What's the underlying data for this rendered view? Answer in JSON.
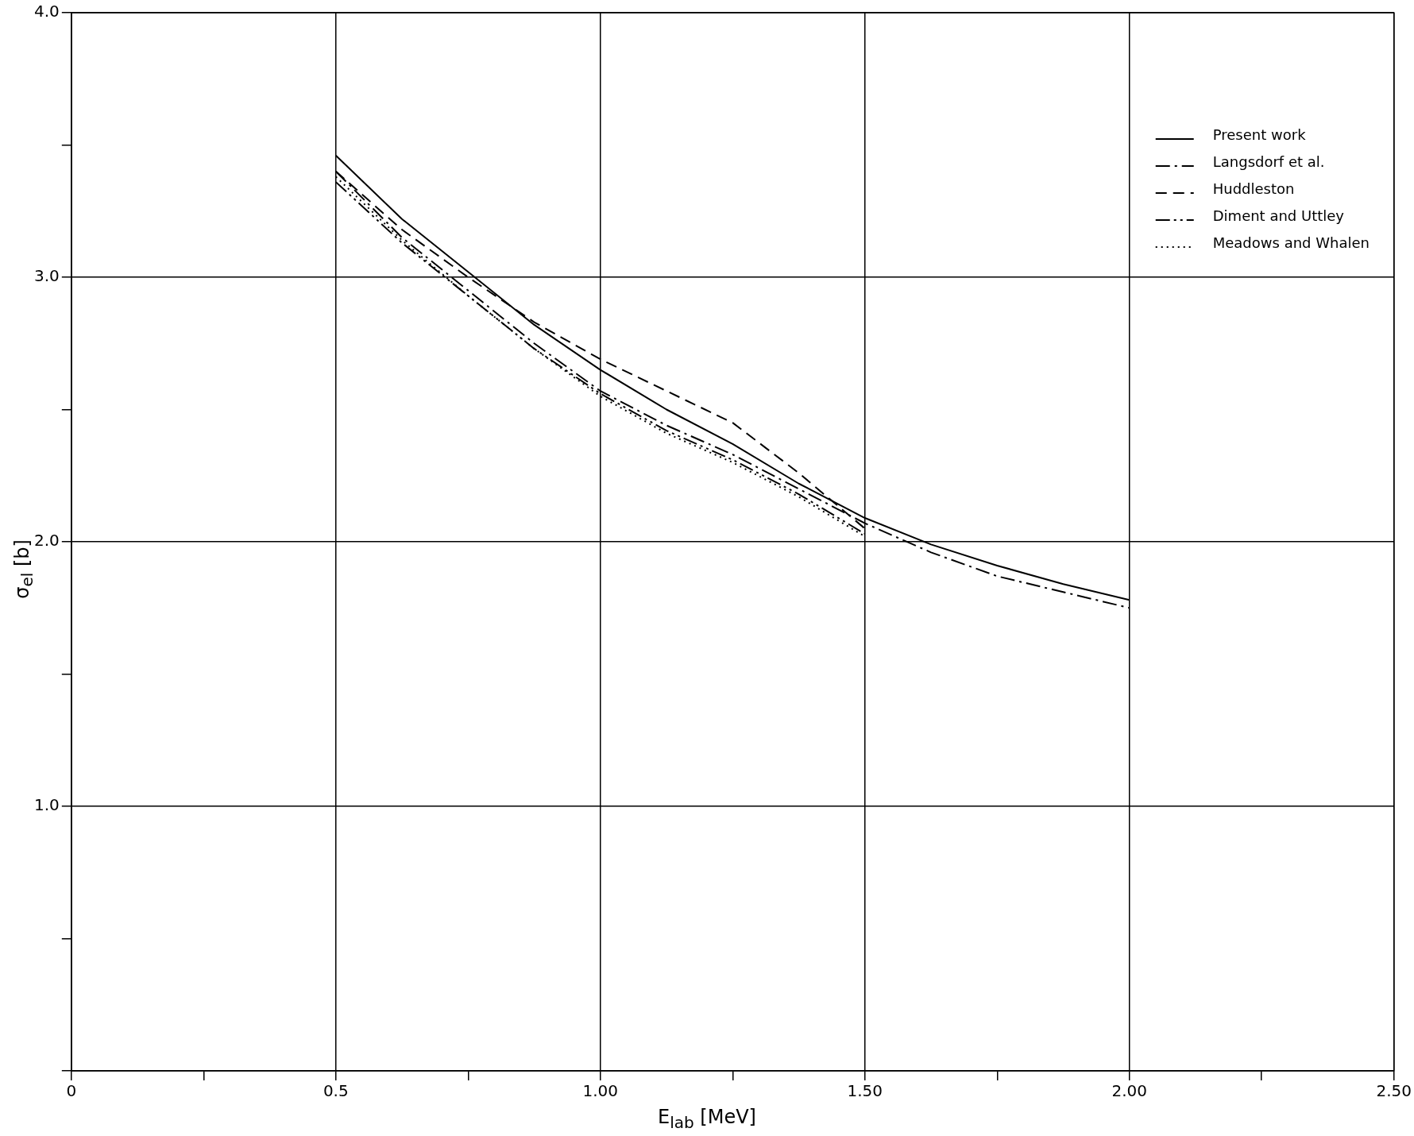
{
  "chart_data": {
    "type": "line",
    "xlabel": "E$_{lab}$ [MeV]",
    "ylabel": "σ$_{el}$ [b]",
    "xlim": [
      0,
      2.5
    ],
    "ylim": [
      0,
      4.0
    ],
    "xticks": [
      0,
      {
        "value": 0.25,
        "label": null
      },
      0.5,
      {
        "value": 0.75,
        "label": null
      },
      {
        "value": 1.0,
        "label": "1.00"
      },
      {
        "value": 1.25,
        "label": null
      },
      {
        "value": 1.5,
        "label": "1.50"
      },
      {
        "value": 1.75,
        "label": null
      },
      {
        "value": 2.0,
        "label": "2.00"
      },
      {
        "value": 2.25,
        "label": null
      },
      {
        "value": 2.5,
        "label": "2.50"
      }
    ],
    "yticks": [
      {
        "value": 0,
        "label": null
      },
      {
        "value": 0.5,
        "label": null
      },
      {
        "value": 1.0,
        "label": "1.0"
      },
      {
        "value": 1.5,
        "label": null
      },
      {
        "value": 2.0,
        "label": "2.0"
      },
      {
        "value": 2.5,
        "label": null
      },
      {
        "value": 3.0,
        "label": "3.0"
      },
      {
        "value": 3.5,
        "label": null
      },
      {
        "value": 4.0,
        "label": "4.0"
      }
    ],
    "grid": true,
    "legend": "top right",
    "marker": "none",
    "x": [
      0.5,
      0.625,
      0.75,
      0.875,
      1.0,
      1.125,
      1.25,
      1.375,
      1.5,
      1.625,
      1.75,
      1.875,
      2.0
    ],
    "series": [
      {
        "name": "Present work",
        "color": "#000000",
        "line_style": "solid",
        "values": [
          3.46,
          3.22,
          3.02,
          2.82,
          2.65,
          2.5,
          2.37,
          2.22,
          2.09,
          1.99,
          1.91,
          1.84,
          1.78
        ]
      },
      {
        "name": "Langsdorf et al.",
        "color": "#000000",
        "line_style": "dashdot",
        "values": [
          3.4,
          3.15,
          2.95,
          2.75,
          2.57,
          2.44,
          2.33,
          2.2,
          2.07,
          1.96,
          1.87,
          1.81,
          1.75
        ]
      },
      {
        "name": "Huddleston",
        "color": "#000000",
        "line_style": "dashed",
        "x": [
          0.5,
          0.625,
          0.75,
          0.875,
          1.0,
          1.125,
          1.25,
          1.375,
          1.5
        ],
        "values": [
          3.4,
          3.18,
          3.0,
          2.83,
          2.69,
          2.57,
          2.45,
          2.26,
          2.05
        ]
      },
      {
        "name": "Diment and Uttley",
        "color": "#000000",
        "line_style": "dashdotdot",
        "x": [
          0.5,
          0.625,
          0.75,
          0.875,
          1.0,
          1.125,
          1.25,
          1.375,
          1.5
        ],
        "values": [
          3.36,
          3.13,
          2.93,
          2.73,
          2.56,
          2.42,
          2.31,
          2.18,
          2.03
        ]
      },
      {
        "name": "Meadows and Whalen",
        "color": "#000000",
        "line_style": "dotted",
        "x": [
          0.5,
          0.625,
          0.75,
          0.875,
          1.0,
          1.125,
          1.25,
          1.375,
          1.5
        ],
        "values": [
          3.38,
          3.14,
          2.93,
          2.73,
          2.55,
          2.41,
          2.3,
          2.17,
          2.02
        ]
      }
    ]
  }
}
